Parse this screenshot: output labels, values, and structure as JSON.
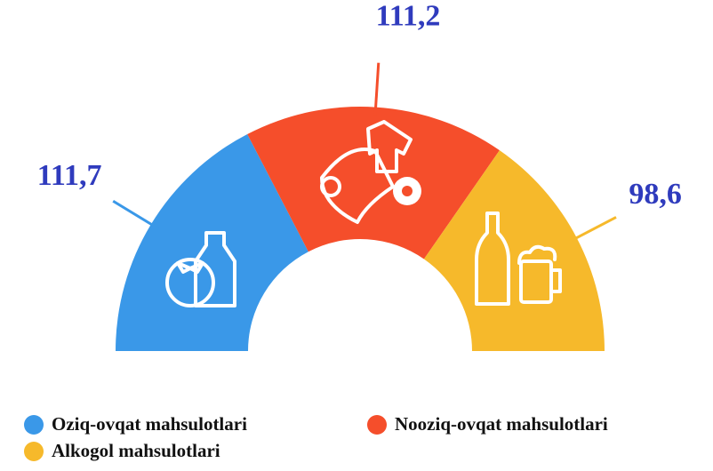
{
  "chart_data": {
    "type": "pie",
    "categories": [
      "Oziq-ovqat mahsulotlari",
      "Nooziq-ovqat mahsulotlari",
      "Alkogol mahsulotlari"
    ],
    "values": [
      111.7,
      111.2,
      98.6
    ],
    "value_labels": [
      "111,7",
      "111,2",
      "98,6"
    ],
    "colors": [
      "#3a98e8",
      "#f54e2b",
      "#f6b92b"
    ]
  }
}
